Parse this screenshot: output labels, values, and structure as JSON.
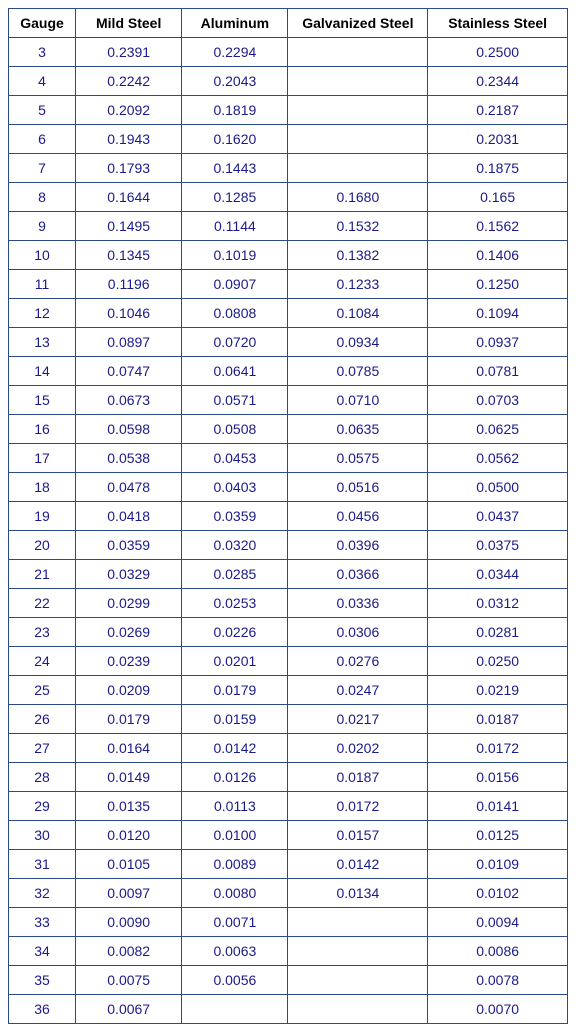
{
  "table": {
    "columns": [
      "Gauge",
      "Mild Steel",
      "Aluminum",
      "Galvanized Steel",
      "Stainless Steel"
    ],
    "column_widths": [
      "12%",
      "19%",
      "19%",
      "25%",
      "25%"
    ],
    "header_color": "#000000",
    "header_font_weight": "bold",
    "header_fontsize": 14,
    "cell_text_color": "#1a1a8a",
    "cell_fontsize": 14,
    "border_color": "#2a4a8a",
    "background_color": "#ffffff",
    "text_align": "center",
    "rows": [
      [
        "3",
        "0.2391",
        "0.2294",
        "",
        "0.2500"
      ],
      [
        "4",
        "0.2242",
        "0.2043",
        "",
        "0.2344"
      ],
      [
        "5",
        "0.2092",
        "0.1819",
        "",
        "0.2187"
      ],
      [
        "6",
        "0.1943",
        "0.1620",
        "",
        "0.2031"
      ],
      [
        "7",
        "0.1793",
        "0.1443",
        "",
        "0.1875"
      ],
      [
        "8",
        "0.1644",
        "0.1285",
        "0.1680",
        "0.165"
      ],
      [
        "9",
        "0.1495",
        "0.1144",
        "0.1532",
        "0.1562"
      ],
      [
        "10",
        "0.1345",
        "0.1019",
        "0.1382",
        "0.1406"
      ],
      [
        "11",
        "0.1196",
        "0.0907",
        "0.1233",
        "0.1250"
      ],
      [
        "12",
        "0.1046",
        "0.0808",
        "0.1084",
        "0.1094"
      ],
      [
        "13",
        "0.0897",
        "0.0720",
        "0.0934",
        "0.0937"
      ],
      [
        "14",
        "0.0747",
        "0.0641",
        "0.0785",
        "0.0781"
      ],
      [
        "15",
        "0.0673",
        "0.0571",
        "0.0710",
        "0.0703"
      ],
      [
        "16",
        "0.0598",
        "0.0508",
        "0.0635",
        "0.0625"
      ],
      [
        "17",
        "0.0538",
        "0.0453",
        "0.0575",
        "0.0562"
      ],
      [
        "18",
        "0.0478",
        "0.0403",
        "0.0516",
        "0.0500"
      ],
      [
        "19",
        "0.0418",
        "0.0359",
        "0.0456",
        "0.0437"
      ],
      [
        "20",
        "0.0359",
        "0.0320",
        "0.0396",
        "0.0375"
      ],
      [
        "21",
        "0.0329",
        "0.0285",
        "0.0366",
        "0.0344"
      ],
      [
        "22",
        "0.0299",
        "0.0253",
        "0.0336",
        "0.0312"
      ],
      [
        "23",
        "0.0269",
        "0.0226",
        "0.0306",
        "0.0281"
      ],
      [
        "24",
        "0.0239",
        "0.0201",
        "0.0276",
        "0.0250"
      ],
      [
        "25",
        "0.0209",
        "0.0179",
        "0.0247",
        "0.0219"
      ],
      [
        "26",
        "0.0179",
        "0.0159",
        "0.0217",
        "0.0187"
      ],
      [
        "27",
        "0.0164",
        "0.0142",
        "0.0202",
        "0.0172"
      ],
      [
        "28",
        "0.0149",
        "0.0126",
        "0.0187",
        "0.0156"
      ],
      [
        "29",
        "0.0135",
        "0.0113",
        "0.0172",
        "0.0141"
      ],
      [
        "30",
        "0.0120",
        "0.0100",
        "0.0157",
        "0.0125"
      ],
      [
        "31",
        "0.0105",
        "0.0089",
        "0.0142",
        "0.0109"
      ],
      [
        "32",
        "0.0097",
        "0.0080",
        "0.0134",
        "0.0102"
      ],
      [
        "33",
        "0.0090",
        "0.0071",
        "",
        "0.0094"
      ],
      [
        "34",
        "0.0082",
        "0.0063",
        "",
        "0.0086"
      ],
      [
        "35",
        "0.0075",
        "0.0056",
        "",
        "0.0078"
      ],
      [
        "36",
        "0.0067",
        "",
        "",
        "0.0070"
      ]
    ]
  }
}
